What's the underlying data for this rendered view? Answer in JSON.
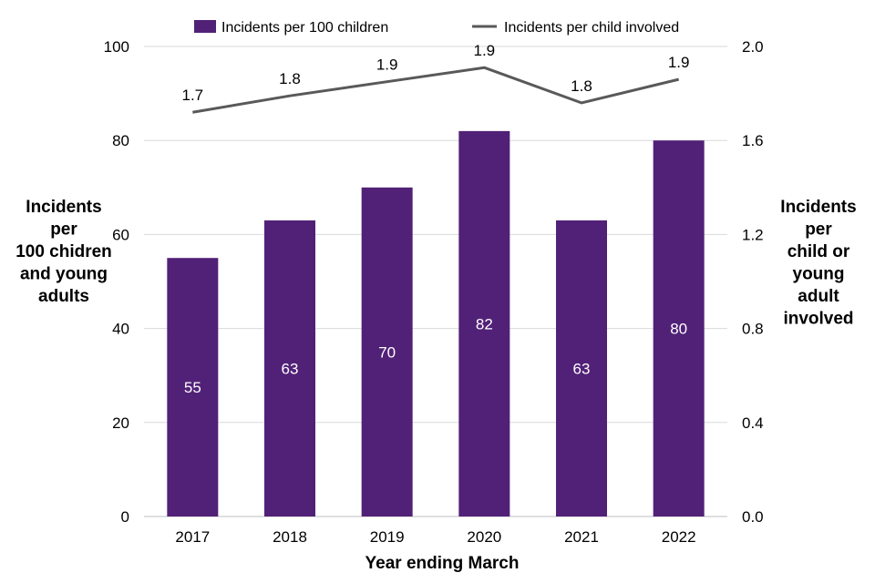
{
  "chart_data": {
    "type": "bar",
    "categories": [
      "2017",
      "2018",
      "2019",
      "2020",
      "2021",
      "2022"
    ],
    "series": [
      {
        "name": "Incidents per 100 children",
        "type": "bar",
        "axis": "left",
        "values": [
          55,
          63,
          70,
          82,
          63,
          80
        ],
        "value_labels": [
          "55",
          "63",
          "70",
          "82",
          "63",
          "80"
        ],
        "color": "#512177"
      },
      {
        "name": "Incidents per child involved",
        "type": "line",
        "axis": "right",
        "values": [
          1.72,
          1.79,
          1.85,
          1.91,
          1.76,
          1.86
        ],
        "value_labels": [
          "1.7",
          "1.8",
          "1.9",
          "1.9",
          "1.8",
          "1.9"
        ],
        "color": "#595959"
      }
    ],
    "xlabel": "Year ending March",
    "ylabel_left_lines": [
      "Incidents",
      "per",
      "100 chidren",
      "and young",
      "adults"
    ],
    "ylabel_right_lines": [
      "Incidents",
      "per",
      "child or",
      "young",
      "adult",
      "involved"
    ],
    "ylim_left": [
      0,
      100
    ],
    "yticks_left": [
      "0",
      "20",
      "40",
      "60",
      "80",
      "100"
    ],
    "ylim_right": [
      0,
      2.0
    ],
    "yticks_right": [
      "0.0",
      "0.4",
      "0.8",
      "1.2",
      "1.6",
      "2.0"
    ],
    "grid": true,
    "legend_position": "top"
  }
}
